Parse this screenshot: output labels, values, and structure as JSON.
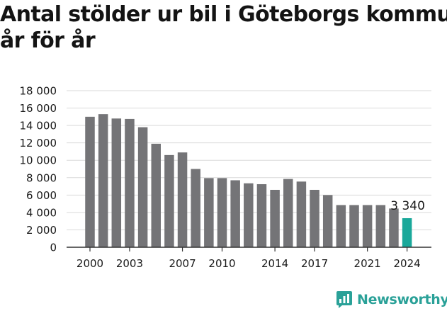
{
  "title_line1": "Antal stölder ur bil i Göteborgs kommun",
  "title_line2": "år för år",
  "brand": "Newsworthy",
  "colors": {
    "bar": "#747477",
    "highlight": "#1aa89a",
    "grid": "#d9d9d9",
    "text": "#1a1a1a"
  },
  "chart_data": {
    "type": "bar",
    "title": "Antal stölder ur bil i Göteborgs kommun år för år",
    "xlabel": "",
    "ylabel": "",
    "ylim": [
      0,
      18000
    ],
    "yticks": [
      0,
      2000,
      4000,
      6000,
      8000,
      10000,
      12000,
      14000,
      16000,
      18000
    ],
    "ytick_labels": [
      "0",
      "2 000",
      "4 000",
      "6 000",
      "8 000",
      "10 000",
      "12 000",
      "14 000",
      "16 000",
      "18 000"
    ],
    "xtick_labels": [
      "2000",
      "2003",
      "2007",
      "2010",
      "2014",
      "2017",
      "2021",
      "2024"
    ],
    "categories": [
      2000,
      2001,
      2002,
      2003,
      2004,
      2005,
      2006,
      2007,
      2008,
      2009,
      2010,
      2011,
      2012,
      2013,
      2014,
      2015,
      2016,
      2017,
      2018,
      2019,
      2020,
      2021,
      2022,
      2023,
      2024
    ],
    "values": [
      15000,
      15300,
      14800,
      14750,
      13800,
      11900,
      10600,
      10900,
      9000,
      7950,
      7950,
      7700,
      7350,
      7250,
      6600,
      7850,
      7550,
      6600,
      6000,
      4850,
      4850,
      4850,
      4850,
      4450,
      3340
    ],
    "highlight_index": 24,
    "annotation": "3 340",
    "grid": true,
    "legend": "none"
  }
}
